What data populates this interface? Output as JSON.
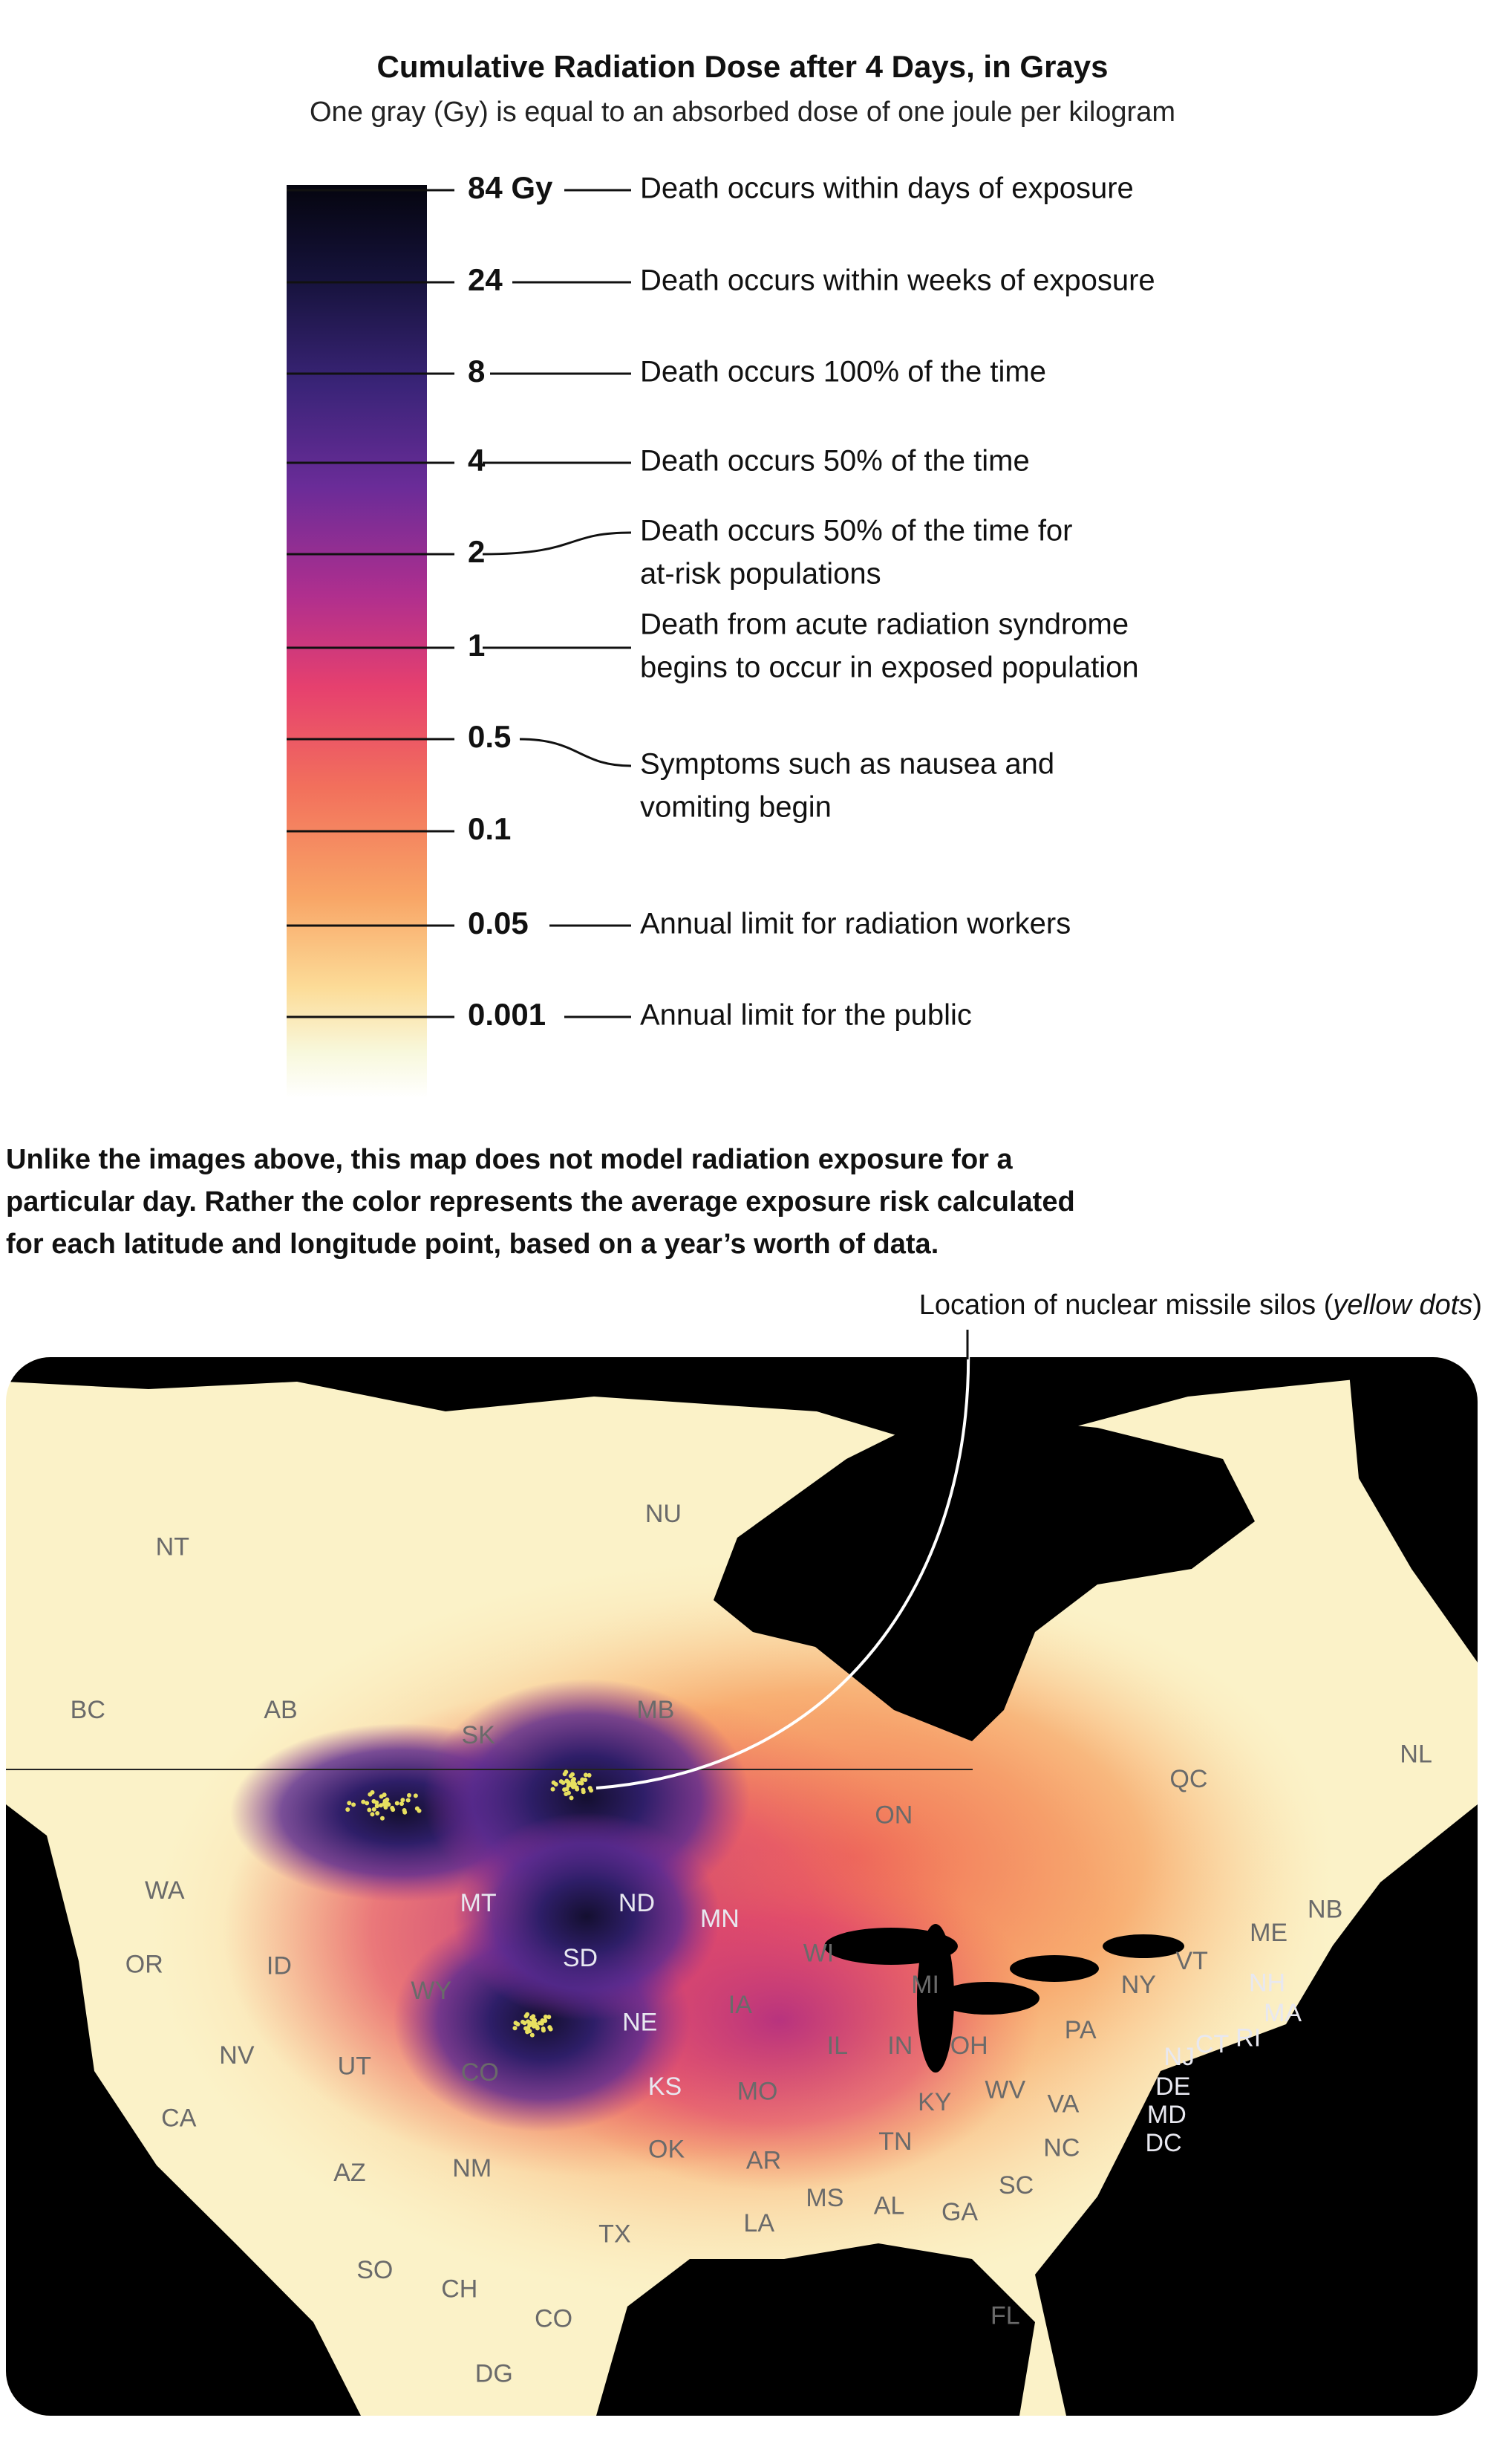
{
  "header": {
    "title": "Cumulative Radiation Dose after 4 Days, in Grays",
    "subtitle": "One gray (Gy) is equal to an absorbed dose of one joule per kilogram"
  },
  "legend": {
    "items": [
      {
        "tick": "84 Gy",
        "description": [
          "Death occurs within days of exposure"
        ]
      },
      {
        "tick": "24",
        "description": [
          "Death occurs within weeks of exposure"
        ]
      },
      {
        "tick": "8",
        "description": [
          "Death occurs 100% of the time"
        ]
      },
      {
        "tick": "4",
        "description": [
          "Death occurs 50% of the time"
        ]
      },
      {
        "tick": "2",
        "description": [
          "Death occurs 50% of the time for",
          "at-risk populations"
        ]
      },
      {
        "tick": "1",
        "description": [
          "Death from acute radiation syndrome",
          "begins to occur in exposed population"
        ]
      },
      {
        "tick": "0.5",
        "description": [
          "Symptoms such as nausea and",
          "vomiting begin"
        ]
      },
      {
        "tick": "0.1"
      },
      {
        "tick": "0.05",
        "description": [
          "Annual limit for radiation workers"
        ]
      },
      {
        "tick": "0.001",
        "description": [
          "Annual limit for the public"
        ]
      }
    ]
  },
  "note": {
    "lines": [
      "Unlike the images above, this map does not model radiation exposure for a",
      "particular day. Rather the color represents the average exposure risk calculated",
      "for each latitude and longitude point, based on a year’s worth of data."
    ]
  },
  "map": {
    "annotation": {
      "prefix": "Location of nuclear missile silos (",
      "emphasis": "yellow dots",
      "suffix": ")"
    },
    "labels": [
      "NT",
      "NU",
      "BC",
      "AB",
      "SK",
      "MB",
      "ON",
      "QC",
      "NL",
      "NB",
      "WA",
      "MT",
      "ND",
      "MN",
      "OR",
      "ID",
      "SD",
      "WI",
      "MI",
      "WY",
      "IA",
      "NY",
      "ME",
      "VT",
      "NH",
      "MA",
      "RI",
      "CT",
      "NE",
      "NV",
      "UT",
      "CO",
      "IL",
      "IN",
      "OH",
      "PA",
      "NJ",
      "DE",
      "MD",
      "DC",
      "KS",
      "MO",
      "WV",
      "VA",
      "KY",
      "CA",
      "AZ",
      "NM",
      "OK",
      "AR",
      "TN",
      "NC",
      "SC",
      "MS",
      "AL",
      "GA",
      "LA",
      "TX",
      "SO",
      "CH",
      "CO",
      "FL",
      "DG"
    ]
  }
}
